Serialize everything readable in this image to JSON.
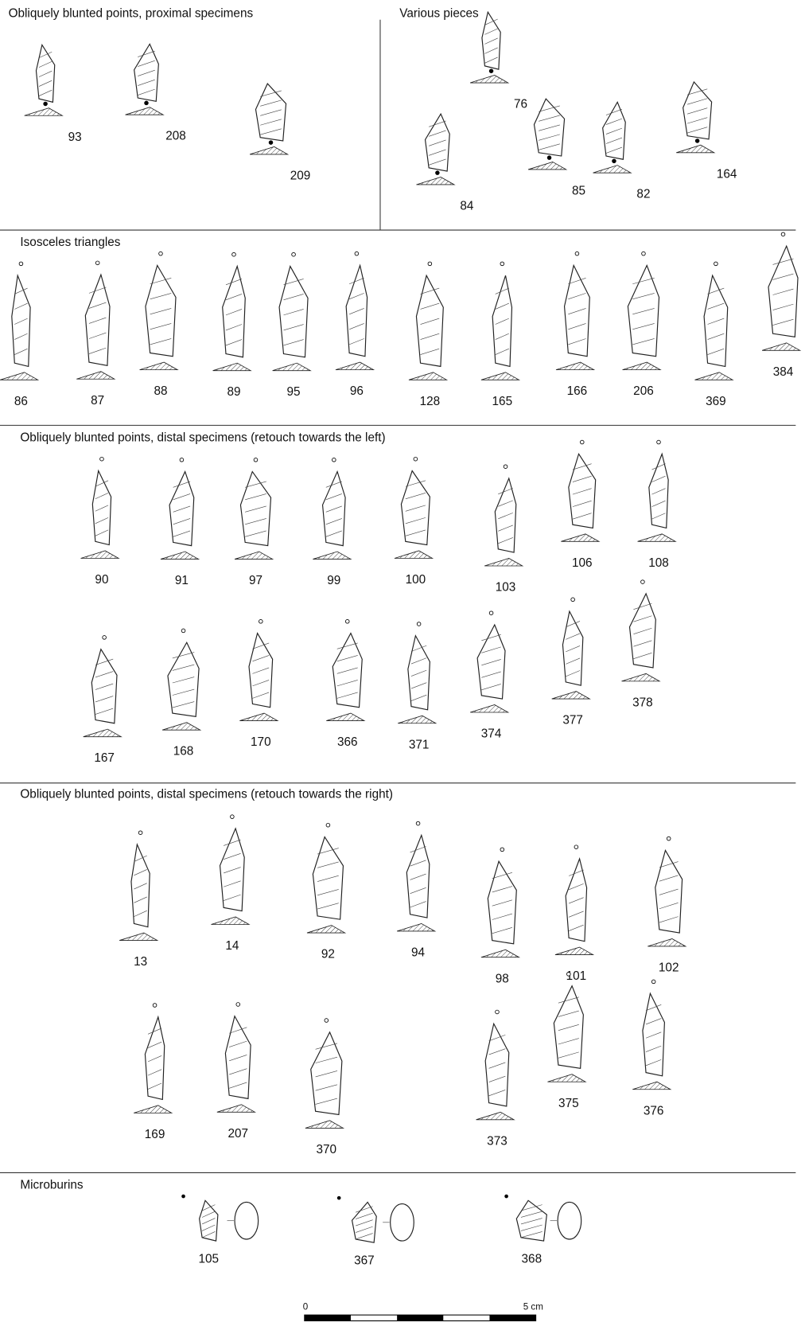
{
  "sections": [
    {
      "title": "Obliquely blunted points, proximal specimens",
      "items": [
        {
          "label": "93"
        },
        {
          "label": "208"
        },
        {
          "label": "209"
        }
      ]
    },
    {
      "title": "Various pieces",
      "items": [
        {
          "label": "76"
        },
        {
          "label": "84"
        },
        {
          "label": "85"
        },
        {
          "label": "82"
        },
        {
          "label": "164"
        }
      ]
    },
    {
      "title": "Isosceles triangles",
      "items": [
        {
          "label": "86"
        },
        {
          "label": "87"
        },
        {
          "label": "88"
        },
        {
          "label": "89"
        },
        {
          "label": "95"
        },
        {
          "label": "96"
        },
        {
          "label": "128"
        },
        {
          "label": "165"
        },
        {
          "label": "166"
        },
        {
          "label": "206"
        },
        {
          "label": "369"
        },
        {
          "label": "384"
        }
      ]
    },
    {
      "title": "Obliquely blunted points, distal specimens (retouch towards the left)",
      "items": [
        {
          "label": "90"
        },
        {
          "label": "91"
        },
        {
          "label": "97"
        },
        {
          "label": "99"
        },
        {
          "label": "100"
        },
        {
          "label": "103"
        },
        {
          "label": "106"
        },
        {
          "label": "108"
        },
        {
          "label": "167"
        },
        {
          "label": "168"
        },
        {
          "label": "170"
        },
        {
          "label": "366"
        },
        {
          "label": "371"
        },
        {
          "label": "374"
        },
        {
          "label": "377"
        },
        {
          "label": "378"
        }
      ]
    },
    {
      "title": "Obliquely blunted points, distal specimens (retouch towards the right)",
      "items": [
        {
          "label": "13"
        },
        {
          "label": "14"
        },
        {
          "label": "92"
        },
        {
          "label": "94"
        },
        {
          "label": "98"
        },
        {
          "label": "101"
        },
        {
          "label": "102"
        },
        {
          "label": "169"
        },
        {
          "label": "207"
        },
        {
          "label": "370"
        },
        {
          "label": "373"
        },
        {
          "label": "375"
        },
        {
          "label": "376"
        }
      ]
    },
    {
      "title": "Microburins",
      "items": [
        {
          "label": "105"
        },
        {
          "label": "367"
        },
        {
          "label": "368"
        }
      ]
    }
  ],
  "scale_bar": {
    "start": "0",
    "end": "5 cm"
  }
}
